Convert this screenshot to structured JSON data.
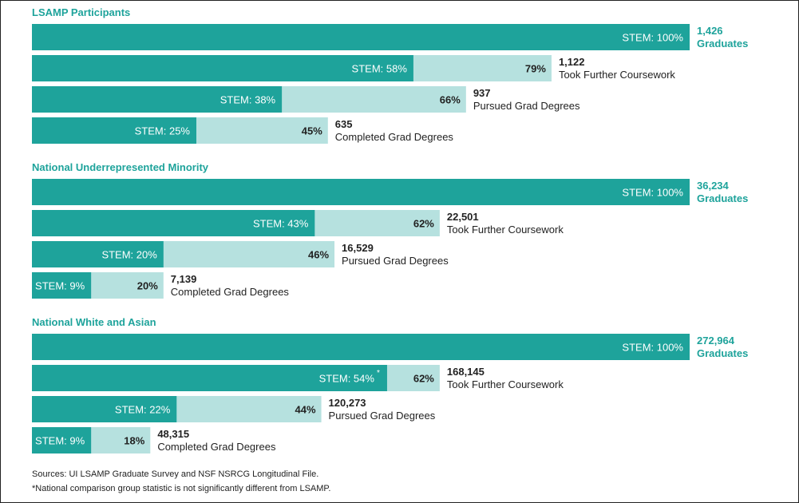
{
  "chart_data": {
    "type": "bar",
    "colors": {
      "stem": "#1ea39b",
      "total": "#b6e1df",
      "accent_text": "#1ea39b",
      "dark_text": "#222222"
    },
    "max_count": 100,
    "groups": [
      {
        "title": "LSAMP Participants",
        "rows": [
          {
            "total_pct": 100,
            "stem_pct": 100,
            "stem_label": "STEM: 100%",
            "total_label": "",
            "star": false,
            "count": "1,426",
            "desc": "Graduates",
            "accent": true
          },
          {
            "total_pct": 79,
            "stem_pct": 58,
            "stem_label": "STEM: 58%",
            "total_label": "79%",
            "star": false,
            "count": "1,122",
            "desc": "Took Further Coursework",
            "accent": false
          },
          {
            "total_pct": 66,
            "stem_pct": 38,
            "stem_label": "STEM: 38%",
            "total_label": "66%",
            "star": false,
            "count": "937",
            "desc": "Pursued Grad Degrees",
            "accent": false
          },
          {
            "total_pct": 45,
            "stem_pct": 25,
            "stem_label": "STEM: 25%",
            "total_label": "45%",
            "star": false,
            "count": "635",
            "desc": "Completed Grad Degrees",
            "accent": false
          }
        ]
      },
      {
        "title": "National Underrepresented Minority",
        "rows": [
          {
            "total_pct": 100,
            "stem_pct": 100,
            "stem_label": "STEM: 100%",
            "total_label": "",
            "star": false,
            "count": "36,234",
            "desc": "Graduates",
            "accent": true
          },
          {
            "total_pct": 62,
            "stem_pct": 43,
            "stem_label": "STEM: 43%",
            "total_label": "62%",
            "star": false,
            "count": "22,501",
            "desc": "Took Further Coursework",
            "accent": false
          },
          {
            "total_pct": 46,
            "stem_pct": 20,
            "stem_label": "STEM: 20%",
            "total_label": "46%",
            "star": false,
            "count": "16,529",
            "desc": "Pursued Grad Degrees",
            "accent": false
          },
          {
            "total_pct": 20,
            "stem_pct": 9,
            "stem_label": "STEM: 9%",
            "total_label": "20%",
            "star": false,
            "count": "7,139",
            "desc": "Completed Grad Degrees",
            "accent": false
          }
        ]
      },
      {
        "title": "National White and Asian",
        "rows": [
          {
            "total_pct": 100,
            "stem_pct": 100,
            "stem_label": "STEM: 100%",
            "total_label": "",
            "star": false,
            "count": "272,964",
            "desc": "Graduates",
            "accent": true
          },
          {
            "total_pct": 62,
            "stem_pct": 54,
            "stem_label": "STEM: 54%",
            "total_label": "62%",
            "star": true,
            "count": "168,145",
            "desc": "Took Further Coursework",
            "accent": false
          },
          {
            "total_pct": 44,
            "stem_pct": 22,
            "stem_label": "STEM: 22%",
            "total_label": "44%",
            "star": false,
            "count": "120,273",
            "desc": "Pursued Grad Degrees",
            "accent": false
          },
          {
            "total_pct": 18,
            "stem_pct": 9,
            "stem_label": "STEM: 9%",
            "total_label": "18%",
            "star": false,
            "count": "48,315",
            "desc": "Completed Grad Degrees",
            "accent": false
          }
        ]
      }
    ]
  },
  "footer": {
    "sources": "Sources: UI LSAMP Graduate Survey and NSF NSRCG Longitudinal File.",
    "note": "*National comparison group statistic is not significantly different from LSAMP."
  }
}
